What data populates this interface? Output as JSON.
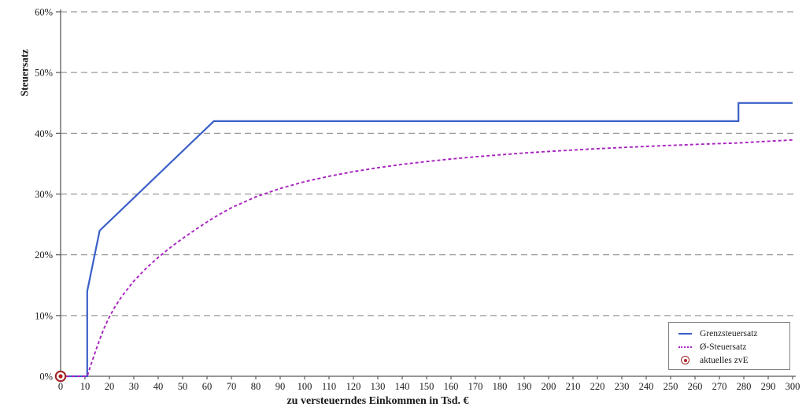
{
  "chart_data": {
    "type": "line",
    "title": "",
    "xlabel": "zu versteuerndes Einkommen in Tsd. €",
    "ylabel": "Steuersatz",
    "xlim": [
      0,
      300
    ],
    "ylim": [
      0,
      60
    ],
    "x_tick_step": 10,
    "y_tick_step": 10,
    "y_tick_suffix": "%",
    "grid": "horizontal-dashed",
    "legend_position": "bottom-right",
    "colors": {
      "grid": "#9a9a9a",
      "axis": "#595959",
      "text": "#1a1a1a"
    },
    "series": [
      {
        "name": "Grenzsteuersatz",
        "color": "#3a5fc8",
        "style": "solid",
        "width": 2.2,
        "points": [
          [
            0,
            0
          ],
          [
            10.9,
            0
          ],
          [
            10.9,
            14
          ],
          [
            16,
            23.97
          ],
          [
            62.8,
            42
          ],
          [
            277.8,
            42
          ],
          [
            277.8,
            45
          ],
          [
            300,
            45
          ]
        ]
      },
      {
        "name": "Ø-Steuersatz",
        "color": "#a822c0",
        "style": "dashed",
        "width": 1.9,
        "points": [
          [
            0,
            0
          ],
          [
            10.9,
            0
          ],
          [
            11,
            0.1
          ],
          [
            12,
            1.37
          ],
          [
            13,
            2.58
          ],
          [
            14,
            3.76
          ],
          [
            15,
            4.91
          ],
          [
            16,
            6.04
          ],
          [
            18,
            8.08
          ],
          [
            20,
            9.78
          ],
          [
            22,
            11.25
          ],
          [
            25,
            13.12
          ],
          [
            30,
            15.67
          ],
          [
            35,
            17.76
          ],
          [
            40,
            19.57
          ],
          [
            45,
            21.2
          ],
          [
            50,
            22.69
          ],
          [
            55,
            24.08
          ],
          [
            60,
            25.4
          ],
          [
            62.8,
            26.12
          ],
          [
            70,
            27.75
          ],
          [
            80,
            29.53
          ],
          [
            90,
            30.92
          ],
          [
            100,
            32.03
          ],
          [
            110,
            32.93
          ],
          [
            120,
            33.69
          ],
          [
            130,
            34.33
          ],
          [
            140,
            34.88
          ],
          [
            150,
            35.35
          ],
          [
            160,
            35.77
          ],
          [
            170,
            36.13
          ],
          [
            180,
            36.46
          ],
          [
            190,
            36.75
          ],
          [
            200,
            37.01
          ],
          [
            210,
            37.25
          ],
          [
            220,
            37.47
          ],
          [
            230,
            37.66
          ],
          [
            240,
            37.84
          ],
          [
            250,
            38.01
          ],
          [
            260,
            38.16
          ],
          [
            270,
            38.31
          ],
          [
            277.8,
            38.41
          ],
          [
            280,
            38.46
          ],
          [
            290,
            38.69
          ],
          [
            300,
            38.9
          ]
        ]
      }
    ],
    "marker": {
      "label": "aktuelles zvE",
      "x": 0,
      "y": 0,
      "ring_color": "#9e2428",
      "dot_color": "#b22222"
    },
    "legend": [
      "Grenzsteuersatz",
      "Ø-Steuersatz",
      "aktuelles zvE"
    ]
  }
}
